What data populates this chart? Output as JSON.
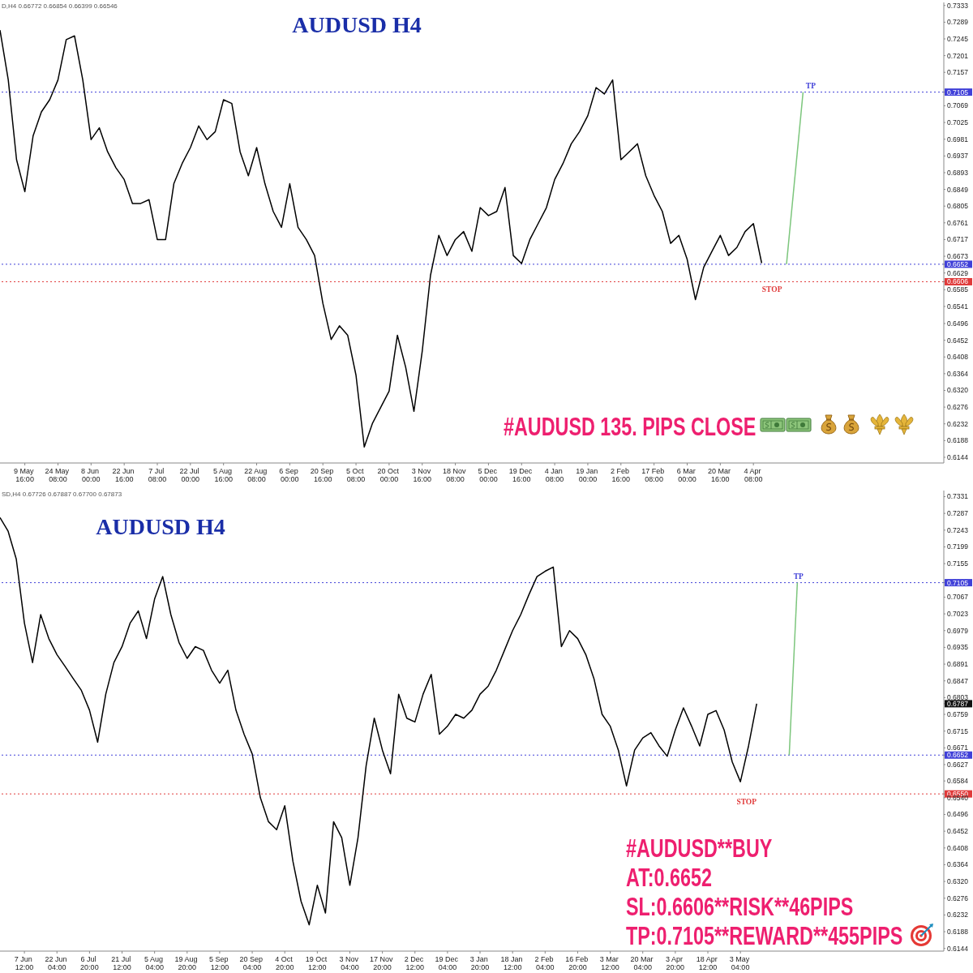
{
  "chart_data": [
    {
      "type": "line",
      "title": "AUDUSD H4",
      "categories": [
        null,
        null,
        null,
        "9 May 16:00",
        null,
        null,
        null,
        "24 May 08:00",
        null,
        null,
        null,
        "8 Jun 00:00",
        null,
        null,
        null,
        "22 Jun 16:00",
        null,
        null,
        null,
        "7 Jul 08:00",
        null,
        null,
        null,
        "22 Jul 00:00",
        null,
        null,
        null,
        "5 Aug 16:00",
        null,
        null,
        null,
        "22 Aug 08:00",
        null,
        null,
        null,
        "6 Sep 00:00",
        null,
        null,
        null,
        "20 Sep 16:00",
        null,
        null,
        null,
        "5 Oct 08:00",
        null,
        null,
        null,
        "20 Oct 00:00",
        null,
        null,
        null,
        "3 Nov 16:00",
        null,
        null,
        null,
        "18 Nov 08:00",
        null,
        null,
        null,
        "5 Dec 00:00",
        null,
        null,
        null,
        "19 Dec 16:00",
        null,
        null,
        null,
        "4 Jan 08:00",
        null,
        null,
        null,
        "19 Jan 00:00",
        null,
        null,
        null,
        "2 Feb 16:00",
        null,
        null,
        null,
        "17 Feb 08:00",
        null,
        null,
        null,
        "6 Mar 00:00",
        null,
        null,
        null,
        "20 Mar 16:00",
        null,
        null,
        null,
        "4 Apr 08:00",
        null,
        null,
        null,
        null,
        null,
        null,
        null,
        null,
        null,
        null,
        null,
        null,
        null,
        null,
        null,
        null,
        null,
        null,
        null,
        null,
        null,
        null,
        null
      ],
      "series": [
        {
          "color": "#000000",
          "values": [
            0.7268,
            0.7137,
            0.6927,
            0.6843,
            0.699,
            0.7053,
            0.7085,
            0.7137,
            0.7243,
            0.7253,
            0.7137,
            0.698,
            0.7011,
            0.6948,
            0.6906,
            0.6875,
            0.6812,
            0.6812,
            0.6822,
            0.6717,
            0.6717,
            0.6864,
            0.6917,
            0.6959,
            0.7016,
            0.698,
            0.7001,
            0.7085,
            0.7075,
            0.6948,
            0.6885,
            0.6959,
            0.6864,
            0.6791,
            0.6749,
            0.6864,
            0.6749,
            0.6717,
            0.6675,
            0.6549,
            0.6454,
            0.649,
            0.6465,
            0.636,
            0.6171,
            0.6234,
            0.6276,
            0.6318,
            0.6465,
            0.6381,
            0.6265,
            0.6423,
            0.6623,
            0.6728,
            0.6675,
            0.6717,
            0.6738,
            0.6686,
            0.6801,
            0.678,
            0.6791,
            0.6854,
            0.6675,
            0.6654,
            0.6717,
            0.6759,
            0.6801,
            0.6875,
            0.6917,
            0.6969,
            0.7001,
            0.7043,
            0.7117,
            0.71,
            0.7137,
            0.6927,
            0.6948,
            0.6969,
            0.6885,
            0.6833,
            0.6791,
            0.6707,
            0.6728,
            0.6665,
            0.6559,
            0.6644,
            0.6686,
            0.6728,
            0.6675,
            0.6696,
            0.6738,
            0.6759,
            0.6655,
            null,
            null,
            null,
            null,
            null,
            null,
            null,
            null,
            null,
            null,
            null,
            null,
            null,
            null,
            null,
            null,
            null,
            null,
            null,
            null,
            null,
            null
          ]
        },
        {
          "color": "#7dc67d",
          "values": [
            null,
            null,
            null,
            null,
            null,
            null,
            null,
            null,
            null,
            null,
            null,
            null,
            null,
            null,
            null,
            null,
            null,
            null,
            null,
            null,
            null,
            null,
            null,
            null,
            null,
            null,
            null,
            null,
            null,
            null,
            null,
            null,
            null,
            null,
            null,
            null,
            null,
            null,
            null,
            null,
            null,
            null,
            null,
            null,
            null,
            null,
            null,
            null,
            null,
            null,
            null,
            null,
            null,
            null,
            null,
            null,
            null,
            null,
            null,
            null,
            null,
            null,
            null,
            null,
            null,
            null,
            null,
            null,
            null,
            null,
            null,
            null,
            null,
            null,
            null,
            null,
            null,
            null,
            null,
            null,
            null,
            null,
            null,
            null,
            null,
            null,
            null,
            null,
            null,
            null,
            null,
            null,
            null,
            null,
            null,
            0.6652,
            null,
            0.7105,
            null,
            null,
            null,
            null,
            null,
            null,
            null,
            null,
            null,
            null,
            null,
            null,
            null,
            null,
            null,
            null,
            null
          ]
        }
      ],
      "ylim": [
        0.6129,
        0.7341
      ],
      "yticks": [
        0.7333,
        0.7289,
        0.7245,
        0.7201,
        0.7157,
        0.7105,
        0.7069,
        0.7025,
        0.6981,
        0.6937,
        0.6893,
        0.6849,
        0.6805,
        0.6761,
        0.6717,
        0.6673,
        0.6652,
        0.6629,
        0.6606,
        0.6585,
        0.6541,
        0.6496,
        0.6452,
        0.6408,
        0.6364,
        {
          "value": 0.632,
          "label": "0.6320"
        },
        0.6276,
        0.6232,
        0.6188,
        0.6144
      ],
      "ref_lines": [
        {
          "axis": "y",
          "value": 0.7105,
          "label": "TP",
          "color": "#4040d8",
          "line_style": "dotted"
        },
        {
          "axis": "y",
          "value": 0.6652,
          "color": "#4040d8",
          "line_style": "dotted"
        },
        {
          "axis": "y",
          "value": 0.6606,
          "label": "STOP",
          "color": "#e03a3a",
          "line_style": "dotted"
        }
      ],
      "annotations": [
        "D,H4 0.66772 0.66854 0.66399 0.66546",
        "#AUDUSD 135. PIPS CLOSE"
      ]
    },
    {
      "type": "line",
      "title": "AUDUSD H4",
      "categories": [
        null,
        null,
        null,
        "7 Jun 12:00",
        null,
        null,
        null,
        "22 Jun 04:00",
        null,
        null,
        null,
        "6 Jul 20:00",
        null,
        null,
        null,
        "21 Jul 12:00",
        null,
        null,
        null,
        "5 Aug 04:00",
        null,
        null,
        null,
        "19 Aug 20:00",
        null,
        null,
        null,
        "5 Sep 12:00",
        null,
        null,
        null,
        "20 Sep 04:00",
        null,
        null,
        null,
        "4 Oct 20:00",
        null,
        null,
        null,
        "19 Oct 12:00",
        null,
        null,
        null,
        "3 Nov 04:00",
        null,
        null,
        null,
        "17 Nov 20:00",
        null,
        null,
        null,
        "2 Dec 12:00",
        null,
        null,
        null,
        "19 Dec 04:00",
        null,
        null,
        null,
        "3 Jan 20:00",
        null,
        null,
        null,
        "18 Jan 12:00",
        null,
        null,
        null,
        "2 Feb 04:00",
        null,
        null,
        null,
        "16 Feb 20:00",
        null,
        null,
        null,
        "3 Mar 12:00",
        null,
        null,
        null,
        "20 Mar 04:00",
        null,
        null,
        null,
        "3 Apr 20:00",
        null,
        null,
        null,
        "18 Apr 12:00",
        null,
        null,
        null,
        "3 May 04:00",
        null,
        null,
        null,
        null,
        null,
        null,
        null,
        null,
        null,
        null,
        null,
        null,
        null,
        null,
        null,
        null,
        null,
        null,
        null,
        null,
        null,
        null,
        null,
        null,
        null
      ],
      "series": [
        {
          "color": "#000000",
          "values": [
            0.7276,
            0.724,
            0.7167,
            0.6999,
            0.6895,
            0.7021,
            0.6958,
            0.6916,
            0.6885,
            0.6853,
            0.6822,
            0.677,
            0.6686,
            0.6812,
            0.6895,
            0.6937,
            0.6999,
            0.7031,
            0.6958,
            0.7062,
            0.7121,
            0.7021,
            0.6948,
            0.6906,
            0.6937,
            0.6927,
            0.6875,
            0.6841,
            0.6875,
            0.677,
            0.6707,
            0.6655,
            0.654,
            0.6477,
            0.6456,
            0.6519,
            0.6373,
            0.6268,
            0.6206,
            0.631,
            0.6237,
            0.6477,
            0.6435,
            0.631,
            0.6435,
            0.6624,
            0.6749,
            0.6665,
            0.6603,
            0.6812,
            0.6749,
            0.6739,
            0.6812,
            0.6864,
            0.6707,
            0.6728,
            0.6759,
            0.6749,
            0.677,
            0.6812,
            0.6833,
            0.6875,
            0.6927,
            0.6979,
            0.7021,
            0.7073,
            0.7121,
            0.7135,
            0.7146,
            0.6937,
            0.6979,
            0.6958,
            0.6916,
            0.6853,
            0.6759,
            0.6728,
            0.6665,
            0.6571,
            0.6665,
            0.6697,
            0.6711,
            0.6676,
            0.6649,
            0.6718,
            0.6776,
            0.6728,
            0.6676,
            0.6759,
            0.6769,
            0.6718,
            0.6634,
            0.6582,
            0.6676,
            0.6787,
            null,
            null,
            null,
            null,
            null,
            null,
            null,
            null,
            null,
            null,
            null,
            null,
            null,
            null,
            null,
            null,
            null,
            null,
            null,
            null,
            null,
            null,
            null
          ]
        },
        {
          "color": "#7dc67d",
          "values": [
            null,
            null,
            null,
            null,
            null,
            null,
            null,
            null,
            null,
            null,
            null,
            null,
            null,
            null,
            null,
            null,
            null,
            null,
            null,
            null,
            null,
            null,
            null,
            null,
            null,
            null,
            null,
            null,
            null,
            null,
            null,
            null,
            null,
            null,
            null,
            null,
            null,
            null,
            null,
            null,
            null,
            null,
            null,
            null,
            null,
            null,
            null,
            null,
            null,
            null,
            null,
            null,
            null,
            null,
            null,
            null,
            null,
            null,
            null,
            null,
            null,
            null,
            null,
            null,
            null,
            null,
            null,
            null,
            null,
            null,
            null,
            null,
            null,
            null,
            null,
            null,
            null,
            null,
            null,
            null,
            null,
            null,
            null,
            null,
            null,
            null,
            null,
            null,
            null,
            null,
            null,
            null,
            null,
            null,
            null,
            null,
            null,
            0.6652,
            0.7105,
            null,
            null,
            null,
            null,
            null,
            null,
            null,
            null,
            null,
            null,
            null,
            null,
            null,
            null,
            null,
            null,
            null,
            null
          ]
        }
      ],
      "ylim": [
        0.6137,
        0.7347
      ],
      "yticks": [
        0.7331,
        0.7287,
        0.7243,
        0.7199,
        0.7155,
        0.7105,
        0.7067,
        0.7023,
        0.6979,
        0.6935,
        0.6891,
        0.6847,
        0.6803,
        0.6787,
        0.6759,
        0.6715,
        0.6671,
        0.6652,
        0.6627,
        0.6584,
        {
          "value": 0.655,
          "label": "0.6550"
        },
        {
          "value": 0.654,
          "label": "0.6540"
        },
        0.6496,
        0.6452,
        0.6408,
        0.6364,
        {
          "value": 0.632,
          "label": "0.6320"
        },
        0.6276,
        0.6232,
        0.6188,
        0.6144
      ],
      "ref_lines": [
        {
          "axis": "y",
          "value": 0.7105,
          "label": "TP",
          "color": "#4040d8",
          "line_style": "dotted"
        },
        {
          "axis": "y",
          "value": 0.6652,
          "color": "#4040d8",
          "line_style": "dotted"
        },
        {
          "axis": "y",
          "value": 0.655,
          "label": "STOP",
          "color": "#e03a3a",
          "line_style": "dotted"
        }
      ],
      "annotations": [
        "SD,H4 0.67726 0.67887 0.67700 0.67873",
        "#AUDUSD**BUY",
        "AT:0.6652",
        "SL:0.6606**RISK**46PIPS",
        "TP:0.7105**REWARD**455PIPS"
      ]
    }
  ]
}
